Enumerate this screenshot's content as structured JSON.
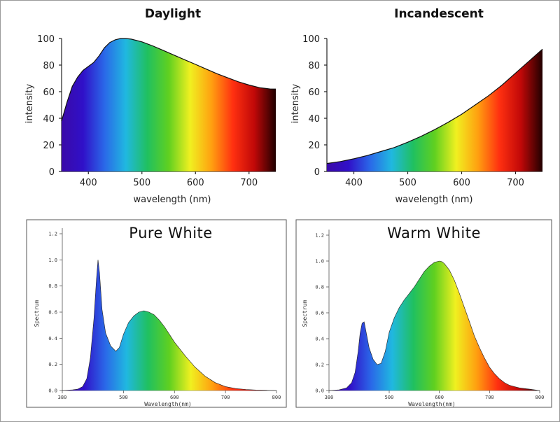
{
  "spectrum_colors": [
    "#3a0aa8",
    "#3010c8",
    "#2a68e8",
    "#20b8e0",
    "#20c060",
    "#60d020",
    "#f0f020",
    "#ffa010",
    "#ff3010",
    "#c00808",
    "#200000"
  ],
  "chart_data": [
    {
      "id": "daylight",
      "type": "area",
      "title": "Daylight",
      "xlabel": "wavelength (nm)",
      "ylabel": "intensity",
      "xlim": [
        350,
        750
      ],
      "ylim": [
        0,
        100
      ],
      "xticks": [
        "400",
        "500",
        "600",
        "700"
      ],
      "yticks": [
        "0",
        "20",
        "40",
        "60",
        "80",
        "100"
      ],
      "grid": false,
      "x": [
        350,
        360,
        370,
        380,
        390,
        400,
        410,
        420,
        430,
        440,
        450,
        460,
        470,
        480,
        500,
        520,
        540,
        560,
        580,
        600,
        620,
        640,
        660,
        680,
        700,
        720,
        740,
        750
      ],
      "y": [
        38,
        52,
        64,
        71,
        76,
        79,
        82,
        87,
        93,
        97,
        99,
        100,
        100,
        99.5,
        97.5,
        94.5,
        91,
        87.5,
        84,
        80.5,
        77,
        73.5,
        70.5,
        67.5,
        65,
        63,
        62,
        62
      ]
    },
    {
      "id": "incandescent",
      "type": "area",
      "title": "Incandescent",
      "xlabel": "wavelength (nm)",
      "ylabel": "intensity",
      "xlim": [
        350,
        750
      ],
      "ylim": [
        0,
        100
      ],
      "xticks": [
        "400",
        "500",
        "600",
        "700"
      ],
      "yticks": [
        "0",
        "20",
        "40",
        "60",
        "80",
        "100"
      ],
      "grid": false,
      "x": [
        350,
        375,
        400,
        425,
        450,
        475,
        500,
        525,
        550,
        575,
        600,
        625,
        650,
        675,
        700,
        725,
        750
      ],
      "y": [
        6,
        7.5,
        9.5,
        12,
        15,
        18,
        22,
        26.5,
        31.5,
        37,
        43,
        50,
        57,
        65,
        74,
        83,
        92
      ]
    },
    {
      "id": "pure-white",
      "type": "area",
      "title": "Pure White",
      "xlabel": "Wavelength(nm)",
      "ylabel": "Spectrum",
      "xlim": [
        380,
        800
      ],
      "ylim": [
        0,
        1.2
      ],
      "xticks": [
        "380",
        "500",
        "600",
        "700",
        "800"
      ],
      "yticks": [
        "0.0",
        "0.2",
        "0.4",
        "0.6",
        "0.8",
        "1.0",
        "1.2"
      ],
      "grid": false,
      "x": [
        380,
        400,
        410,
        420,
        428,
        435,
        442,
        447,
        450,
        453,
        458,
        465,
        475,
        485,
        492,
        500,
        510,
        520,
        530,
        540,
        550,
        560,
        570,
        580,
        590,
        600,
        620,
        640,
        660,
        680,
        700,
        720,
        740,
        760,
        780,
        800
      ],
      "y": [
        0,
        0.005,
        0.01,
        0.03,
        0.09,
        0.25,
        0.55,
        0.85,
        1.0,
        0.9,
        0.62,
        0.44,
        0.34,
        0.3,
        0.33,
        0.43,
        0.52,
        0.57,
        0.6,
        0.61,
        0.6,
        0.58,
        0.54,
        0.49,
        0.43,
        0.37,
        0.27,
        0.18,
        0.11,
        0.06,
        0.03,
        0.015,
        0.008,
        0.004,
        0.002,
        0
      ]
    },
    {
      "id": "warm-white",
      "type": "area",
      "title": "Warm White",
      "xlabel": "Wavelength(nm)",
      "ylabel": "Spectrum",
      "xlim": [
        380,
        800
      ],
      "ylim": [
        0,
        1.2
      ],
      "xticks": [
        "380",
        "500",
        "600",
        "700",
        "800"
      ],
      "yticks": [
        "0.0",
        "0.2",
        "0.4",
        "0.6",
        "0.8",
        "1.0",
        "1.2"
      ],
      "grid": false,
      "x": [
        380,
        400,
        415,
        425,
        432,
        438,
        442,
        446,
        450,
        455,
        460,
        468,
        476,
        484,
        492,
        500,
        510,
        520,
        530,
        540,
        550,
        560,
        570,
        580,
        590,
        600,
        605,
        610,
        620,
        630,
        640,
        650,
        660,
        670,
        680,
        690,
        700,
        710,
        720,
        730,
        740,
        750,
        760,
        770,
        780,
        790,
        800
      ],
      "y": [
        0,
        0.005,
        0.02,
        0.06,
        0.14,
        0.3,
        0.44,
        0.52,
        0.53,
        0.43,
        0.33,
        0.24,
        0.2,
        0.21,
        0.3,
        0.45,
        0.56,
        0.64,
        0.7,
        0.75,
        0.8,
        0.86,
        0.92,
        0.96,
        0.99,
        1.0,
        0.995,
        0.98,
        0.93,
        0.85,
        0.75,
        0.64,
        0.53,
        0.42,
        0.33,
        0.25,
        0.18,
        0.13,
        0.09,
        0.06,
        0.04,
        0.03,
        0.02,
        0.015,
        0.01,
        0.005,
        0
      ]
    }
  ]
}
